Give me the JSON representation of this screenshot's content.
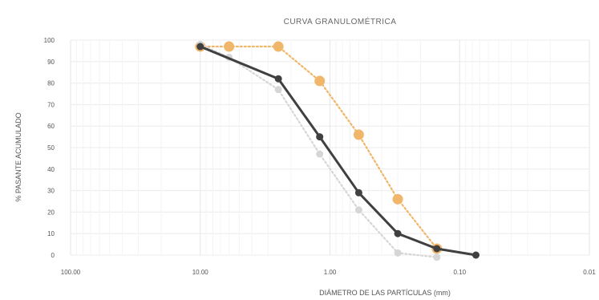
{
  "chart_data": {
    "type": "line",
    "title": "CURVA GRANULOMÉTRICA",
    "xlabel": "DIÁMETRO DE LAS PARTÍCULAS (mm)",
    "ylabel": "% PASANTE ACUMULADO",
    "x_scale": "log",
    "x_reversed": true,
    "xlim": [
      100,
      0.01
    ],
    "ylim": [
      0,
      100
    ],
    "x_ticks": [
      {
        "value": 100,
        "label": "100.00"
      },
      {
        "value": 10,
        "label": "10.00"
      },
      {
        "value": 1,
        "label": "1.00"
      },
      {
        "value": 0.1,
        "label": "0.10"
      },
      {
        "value": 0.01,
        "label": "0.01"
      }
    ],
    "y_ticks": [
      0,
      10,
      20,
      30,
      40,
      50,
      60,
      70,
      80,
      90,
      100
    ],
    "grid": true,
    "series": [
      {
        "color": "#f0b66a",
        "line_style": "dotted",
        "marker": "circle-large",
        "points": [
          [
            10.0,
            97
          ],
          [
            6.0,
            97
          ],
          [
            2.5,
            97
          ],
          [
            1.2,
            81
          ],
          [
            0.6,
            56
          ],
          [
            0.3,
            26
          ],
          [
            0.15,
            3
          ]
        ]
      },
      {
        "color": "#d6d6d6",
        "line_style": "dotted",
        "marker": "circle",
        "points": [
          [
            10.0,
            98
          ],
          [
            6.0,
            92
          ],
          [
            2.5,
            77
          ],
          [
            1.2,
            47
          ],
          [
            0.6,
            21
          ],
          [
            0.3,
            1
          ],
          [
            0.15,
            -1
          ]
        ]
      },
      {
        "color": "#404040",
        "line_style": "solid",
        "marker": "circle",
        "points": [
          [
            10.0,
            97
          ],
          [
            2.5,
            82
          ],
          [
            1.2,
            55
          ],
          [
            0.6,
            29
          ],
          [
            0.3,
            10
          ],
          [
            0.15,
            3
          ],
          [
            0.075,
            0
          ]
        ]
      }
    ]
  }
}
